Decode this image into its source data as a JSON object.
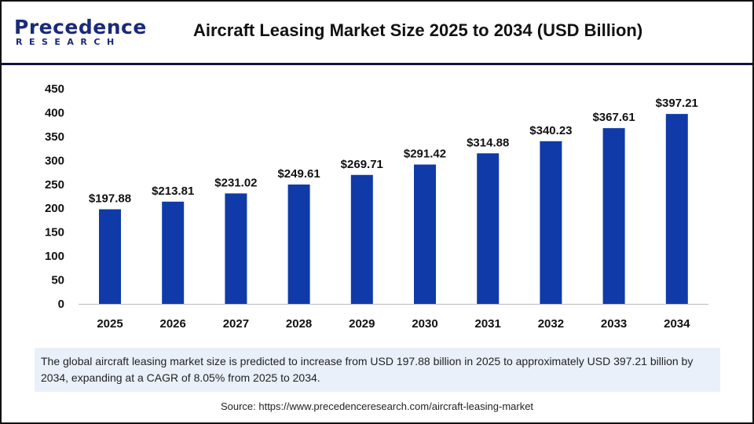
{
  "header": {
    "logo_text": "Precedence",
    "logo_subtext": "RESEARCH",
    "title": "Aircraft Leasing Market Size 2025 to 2034 (USD Billion)"
  },
  "colors": {
    "bar": "#0f3aa8",
    "header_line": "#0d1440",
    "summary_bg": "#eaf0fa"
  },
  "chart_data": {
    "type": "bar",
    "title": "Aircraft Leasing Market Size 2025 to 2034 (USD Billion)",
    "categories": [
      "2025",
      "2026",
      "2027",
      "2028",
      "2029",
      "2030",
      "2031",
      "2032",
      "2033",
      "2034"
    ],
    "values": [
      197.88,
      213.81,
      231.02,
      249.61,
      269.71,
      291.42,
      314.88,
      340.23,
      367.61,
      397.21
    ],
    "data_labels": [
      "$197.88",
      "$213.81",
      "$231.02",
      "$249.61",
      "$269.71",
      "$291.42",
      "$314.88",
      "$340.23",
      "$367.61",
      "$397.21"
    ],
    "ylim": [
      0,
      450
    ],
    "yticks": [
      0,
      50,
      100,
      150,
      200,
      250,
      300,
      350,
      400,
      450
    ],
    "grid": false,
    "xlabel": "",
    "ylabel": ""
  },
  "summary": "The global aircraft leasing market size is predicted to increase from USD 197.88 billion in 2025 to approximately USD 397.21 billion by 2034, expanding at a CAGR of 8.05% from 2025 to 2034.",
  "source": "Source: https://www.precedenceresearch.com/aircraft-leasing-market"
}
